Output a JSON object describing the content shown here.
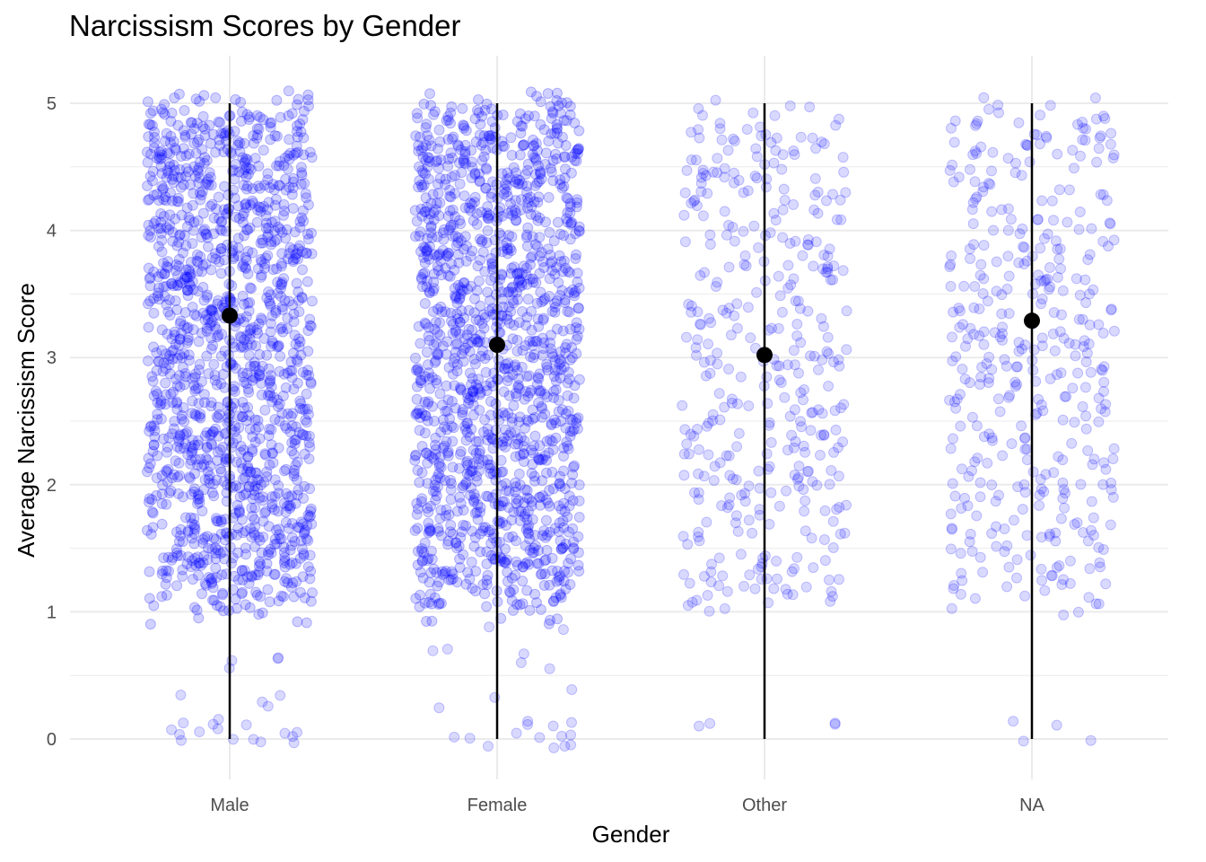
{
  "chart_data": {
    "type": "scatter",
    "subtype": "jittered strip plot with mean and range",
    "title": "Narcissism Scores by Gender",
    "xlabel": "Gender",
    "ylabel": "Average Narcissism Score",
    "categories": [
      "Male",
      "Female",
      "Other",
      "NA"
    ],
    "ylim": [
      -0.3,
      5.35
    ],
    "yticks": [
      0,
      1,
      2,
      3,
      4,
      5
    ],
    "grid": true,
    "legend": "none",
    "point_color": "#0000ff",
    "point_alpha": 0.12,
    "summary_color": "#000000",
    "series": [
      {
        "category": "Male",
        "mean": 3.33,
        "min": 0,
        "max": 5,
        "density": "very high",
        "values_scale": "approx 0.9 to 5.1 dense, sparse outliers 0 to 0.8"
      },
      {
        "category": "Female",
        "mean": 3.1,
        "min": 0,
        "max": 5,
        "density": "very high",
        "values_scale": "approx 0.9 to 5.1 dense, sparse outliers 0 to 0.8"
      },
      {
        "category": "Other",
        "mean": 3.02,
        "min": 0,
        "max": 5,
        "density": "sparse",
        "values_scale": "approx 0.8 to 5.1, few near 0"
      },
      {
        "category": "NA",
        "mean": 3.29,
        "min": 0,
        "max": 5,
        "density": "sparse",
        "values_scale": "approx 0.9 to 5.1, few near 0"
      }
    ]
  }
}
